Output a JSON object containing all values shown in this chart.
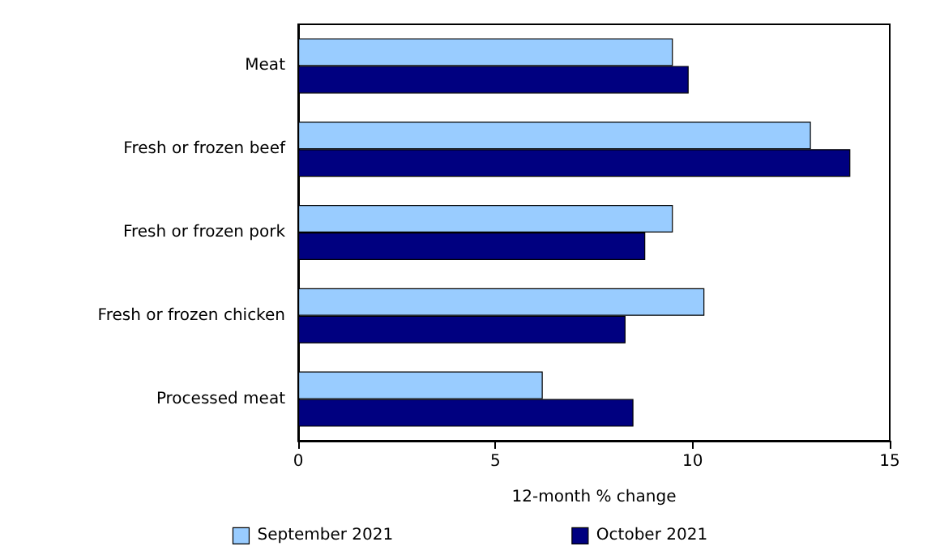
{
  "chart_data": {
    "type": "bar",
    "orientation": "horizontal",
    "xlabel": "12-month % change",
    "categories": [
      "Meat",
      "Fresh or frozen beef",
      "Fresh or frozen pork",
      "Fresh or frozen chicken",
      "Processed meat"
    ],
    "series": [
      {
        "name": "September 2021",
        "color": "#99ccff",
        "values": [
          9.5,
          13.0,
          9.5,
          10.3,
          6.2
        ]
      },
      {
        "name": "October 2021",
        "color": "#000080",
        "values": [
          9.9,
          14.0,
          8.8,
          8.3,
          8.5
        ]
      }
    ],
    "xlim": [
      0,
      15
    ],
    "xticks": [
      0,
      5,
      10,
      15
    ],
    "grid": false,
    "legend": "bottom"
  }
}
